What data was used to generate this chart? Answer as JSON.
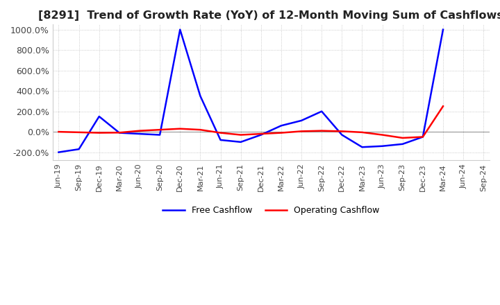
{
  "title": "[8291]  Trend of Growth Rate (YoY) of 12-Month Moving Sum of Cashflows",
  "title_fontsize": 11.5,
  "background_color": "#ffffff",
  "grid_color": "#bbbbbb",
  "grid_style": "dotted",
  "ylim": [
    -280,
    1050
  ],
  "yticks": [
    -200,
    0,
    200,
    400,
    600,
    800,
    1000
  ],
  "ytick_labels": [
    "-200.0%",
    "0.0%",
    "200.0%",
    "400.0%",
    "600.0%",
    "800.0%",
    "1000.0%"
  ],
  "x_labels": [
    "Jun-19",
    "Sep-19",
    "Dec-19",
    "Mar-20",
    "Jun-20",
    "Sep-20",
    "Dec-20",
    "Mar-21",
    "Jun-21",
    "Sep-21",
    "Dec-21",
    "Mar-22",
    "Jun-22",
    "Sep-22",
    "Dec-22",
    "Mar-23",
    "Jun-23",
    "Sep-23",
    "Dec-23",
    "Mar-24",
    "Jun-24",
    "Sep-24"
  ],
  "operating_cashflow": [
    0,
    -5,
    -10,
    -8,
    10,
    20,
    30,
    20,
    -10,
    -30,
    -20,
    -10,
    5,
    10,
    5,
    -5,
    -30,
    -60,
    -50,
    250,
    null,
    null
  ],
  "free_cashflow": [
    -200,
    -170,
    150,
    -10,
    -20,
    -30,
    1000,
    350,
    -80,
    -100,
    -30,
    60,
    110,
    200,
    -30,
    -150,
    -140,
    -120,
    -50,
    1000,
    null,
    null
  ],
  "op_color": "#ff0000",
  "fc_color": "#0000ff",
  "linewidth": 1.8
}
